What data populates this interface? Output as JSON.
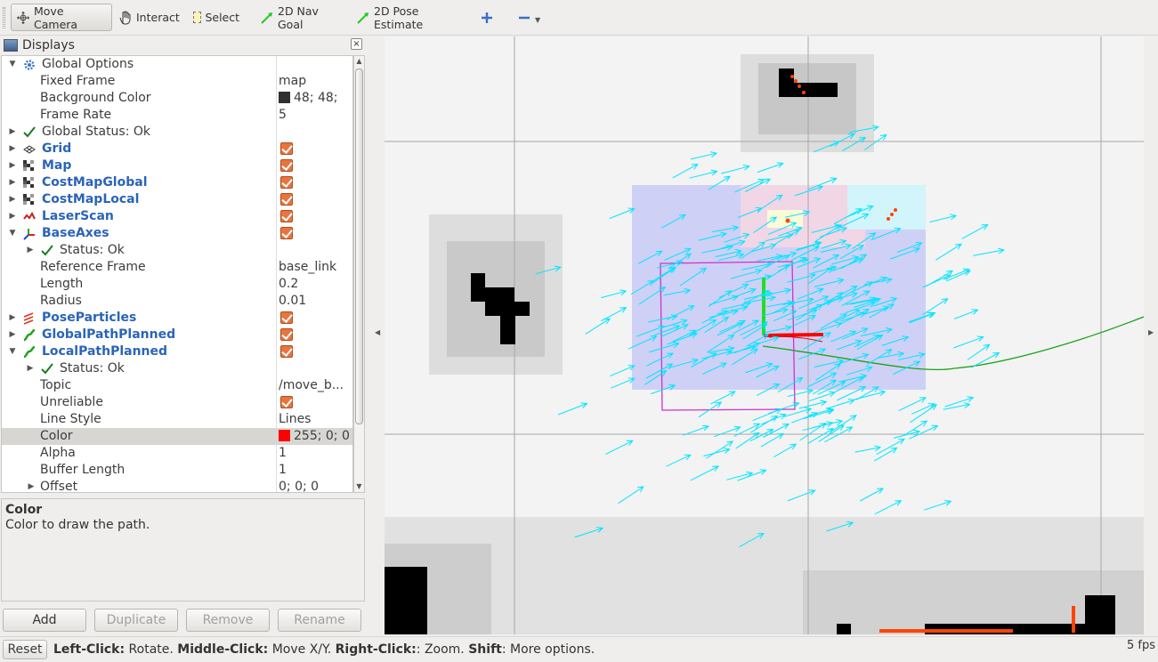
{
  "toolbar": {
    "tools": [
      {
        "label": "Move Camera",
        "icon": "move-camera-icon",
        "active": true
      },
      {
        "label": "Interact",
        "icon": "hand-icon"
      },
      {
        "label": "Select",
        "icon": "select-box-icon"
      },
      {
        "label": "2D Nav Goal",
        "icon": "green-arrow-icon"
      },
      {
        "label": "2D Pose Estimate",
        "icon": "green-arrow-icon"
      }
    ],
    "add_tool_icon": "plus-icon",
    "remove_tool_icon": "minus-icon",
    "menu_icon": "chevron-down-icon"
  },
  "displays": {
    "title": "Displays",
    "close": "×",
    "rows": [
      {
        "name": "Global Options",
        "type": "group",
        "icon": "gear-icon"
      },
      {
        "name": "Fixed Frame",
        "value": "map"
      },
      {
        "name": "Background Color",
        "value": "48; 48;",
        "color": "#303030"
      },
      {
        "name": "Frame Rate",
        "value": "5"
      },
      {
        "name": "Global Status: Ok",
        "type": "status",
        "icon": "check-icon"
      },
      {
        "name": "Grid",
        "type": "display",
        "icon": "grid-icon",
        "checked": true
      },
      {
        "name": "Map",
        "type": "display",
        "icon": "map-icon",
        "checked": true
      },
      {
        "name": "CostMapGlobal",
        "type": "display",
        "icon": "map-icon",
        "checked": true
      },
      {
        "name": "CostMapLocal",
        "type": "display",
        "icon": "map-icon",
        "checked": true
      },
      {
        "name": "LaserScan",
        "type": "display",
        "icon": "laserscan-icon",
        "checked": true
      },
      {
        "name": "BaseAxes",
        "type": "display",
        "icon": "axes-icon",
        "checked": true
      },
      {
        "name": "Status: Ok",
        "type": "substatus",
        "icon": "check-icon"
      },
      {
        "name": "Reference Frame",
        "value": "base_link"
      },
      {
        "name": "Length",
        "value": "0.2"
      },
      {
        "name": "Radius",
        "value": "0.01"
      },
      {
        "name": "PoseParticles",
        "type": "display",
        "icon": "pose-array-icon",
        "checked": true
      },
      {
        "name": "GlobalPathPlanned",
        "type": "display",
        "icon": "path-icon",
        "checked": true
      },
      {
        "name": "LocalPathPlanned",
        "type": "display",
        "icon": "path-icon",
        "checked": true
      },
      {
        "name": "Status: Ok",
        "type": "substatus",
        "icon": "check-icon"
      },
      {
        "name": "Topic",
        "value": "/move_b..."
      },
      {
        "name": "Unreliable",
        "checked": true
      },
      {
        "name": "Line Style",
        "value": "Lines"
      },
      {
        "name": "Color",
        "value": "255; 0; 0",
        "color": "#ff0000",
        "selected": true
      },
      {
        "name": "Alpha",
        "value": "1"
      },
      {
        "name": "Buffer Length",
        "value": "1"
      },
      {
        "name": "Offset",
        "value": "0; 0; 0",
        "collapsed": true
      }
    ]
  },
  "description": {
    "title": "Color",
    "text": "Color to draw the path."
  },
  "buttons": {
    "add": "Add",
    "duplicate": "Duplicate",
    "remove": "Remove",
    "rename": "Rename"
  },
  "status_bar": {
    "reset": "Reset",
    "parts": [
      {
        "b": "Left-Click:",
        "t": " Rotate. "
      },
      {
        "b": "Middle-Click:",
        "t": " Move X/Y. "
      },
      {
        "b": "Right-Click:",
        "t": ": Zoom. "
      },
      {
        "b": "Shift",
        "t": ": More options."
      }
    ],
    "fps": "5 fps"
  },
  "colors": {
    "arrow": "#00e5ff",
    "path_global": "#1aa31a",
    "local_path": "#ff0000",
    "footprint": "#cc33cc",
    "laser": "#ff4400",
    "checkbox": "#e9743e",
    "display_name": "#2a64b8"
  }
}
